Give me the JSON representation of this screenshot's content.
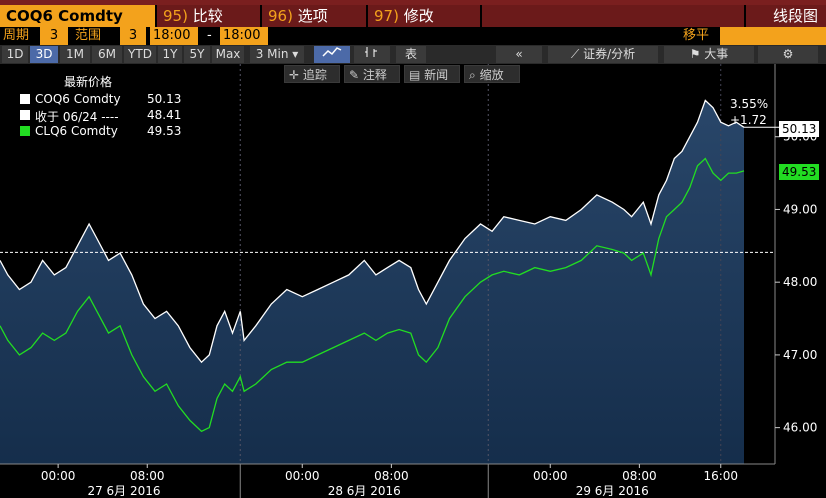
{
  "topbar": {
    "ticker": "COQ6 Comdty",
    "menu": [
      {
        "num": "95)",
        "label": "比较"
      },
      {
        "num": "96)",
        "label": "选项"
      },
      {
        "num": "97)",
        "label": "修改"
      }
    ],
    "view_label": "线段图"
  },
  "settings": {
    "period_label": "周期",
    "period_value": "3",
    "range_label": "范围",
    "range_value": "3",
    "time_from": "18:00",
    "time_sep": "-",
    "time_to": "18:00",
    "ma_label": "移平"
  },
  "range_buttons": [
    "1D",
    "3D",
    "1M",
    "6M",
    "YTD",
    "1Y",
    "5Y",
    "Max"
  ],
  "selected_range": "3D",
  "interval": "3 Min",
  "toolbar_right": {
    "table_label": "表",
    "collapse": "«",
    "securities_label": "证券/分析",
    "events_label": "大事",
    "settings_icon": "gear"
  },
  "chart_tools": [
    "追踪",
    "注释",
    "新闻",
    "缩放"
  ],
  "legend": {
    "title": "最新价格",
    "rows": [
      {
        "name": "COQ6 Comdty",
        "value": "50.13",
        "color": "#ffffff"
      },
      {
        "name": "收于 06/24 ----",
        "value": "48.41",
        "color": "#ffffff"
      },
      {
        "name": "CLQ6 Comdty",
        "value": "49.53",
        "color": "#22dd22"
      }
    ]
  },
  "annotations": {
    "pct_change": "3.55%",
    "abs_change": "+1.72",
    "last_white_tag": "50.13",
    "last_green_tag": "49.53"
  },
  "chart_data": {
    "type": "line",
    "title": "",
    "ylim": [
      45.5,
      51.0
    ],
    "yticks": [
      46.0,
      47.0,
      48.0,
      49.0,
      50.0
    ],
    "prev_close": 48.41,
    "x_labels": [
      {
        "t": 0.075,
        "label": "00:00"
      },
      {
        "t": 0.19,
        "label": "08:00"
      },
      {
        "t": 0.39,
        "label": "00:00"
      },
      {
        "t": 0.505,
        "label": "08:00"
      },
      {
        "t": 0.71,
        "label": "00:00"
      },
      {
        "t": 0.825,
        "label": "08:00"
      },
      {
        "t": 0.93,
        "label": "16:00"
      }
    ],
    "day_labels": [
      {
        "t": 0.16,
        "label": "27 6月 2016"
      },
      {
        "t": 0.47,
        "label": "28 6月 2016"
      },
      {
        "t": 0.79,
        "label": "29 6月 2016"
      }
    ],
    "day_dividers": [
      0.31,
      0.63
    ],
    "series": [
      {
        "name": "COQ6 Comdty",
        "color": "#ffffff",
        "points": [
          [
            0.0,
            48.3
          ],
          [
            0.01,
            48.1
          ],
          [
            0.025,
            47.9
          ],
          [
            0.04,
            48.0
          ],
          [
            0.055,
            48.3
          ],
          [
            0.07,
            48.1
          ],
          [
            0.085,
            48.2
          ],
          [
            0.1,
            48.5
          ],
          [
            0.115,
            48.8
          ],
          [
            0.125,
            48.6
          ],
          [
            0.14,
            48.3
          ],
          [
            0.155,
            48.4
          ],
          [
            0.17,
            48.1
          ],
          [
            0.185,
            47.7
          ],
          [
            0.2,
            47.5
          ],
          [
            0.215,
            47.6
          ],
          [
            0.23,
            47.4
          ],
          [
            0.245,
            47.1
          ],
          [
            0.26,
            46.9
          ],
          [
            0.27,
            47.0
          ],
          [
            0.28,
            47.4
          ],
          [
            0.29,
            47.6
          ],
          [
            0.3,
            47.3
          ],
          [
            0.31,
            47.6
          ],
          [
            0.315,
            47.2
          ],
          [
            0.33,
            47.4
          ],
          [
            0.35,
            47.7
          ],
          [
            0.37,
            47.9
          ],
          [
            0.39,
            47.8
          ],
          [
            0.41,
            47.9
          ],
          [
            0.43,
            48.0
          ],
          [
            0.45,
            48.1
          ],
          [
            0.47,
            48.3
          ],
          [
            0.485,
            48.1
          ],
          [
            0.5,
            48.2
          ],
          [
            0.515,
            48.3
          ],
          [
            0.53,
            48.2
          ],
          [
            0.54,
            47.9
          ],
          [
            0.55,
            47.7
          ],
          [
            0.565,
            48.0
          ],
          [
            0.58,
            48.3
          ],
          [
            0.6,
            48.6
          ],
          [
            0.62,
            48.8
          ],
          [
            0.635,
            48.7
          ],
          [
            0.65,
            48.9
          ],
          [
            0.67,
            48.85
          ],
          [
            0.69,
            48.8
          ],
          [
            0.71,
            48.9
          ],
          [
            0.73,
            48.85
          ],
          [
            0.75,
            49.0
          ],
          [
            0.77,
            49.2
          ],
          [
            0.79,
            49.1
          ],
          [
            0.805,
            49.0
          ],
          [
            0.815,
            48.9
          ],
          [
            0.83,
            49.1
          ],
          [
            0.84,
            48.8
          ],
          [
            0.85,
            49.2
          ],
          [
            0.86,
            49.4
          ],
          [
            0.87,
            49.7
          ],
          [
            0.88,
            49.8
          ],
          [
            0.89,
            50.0
          ],
          [
            0.9,
            50.2
          ],
          [
            0.91,
            50.5
          ],
          [
            0.92,
            50.4
          ],
          [
            0.93,
            50.2
          ],
          [
            0.94,
            50.15
          ],
          [
            0.95,
            50.2
          ],
          [
            0.96,
            50.13
          ]
        ]
      },
      {
        "name": "CLQ6 Comdty",
        "color": "#22dd22",
        "points": [
          [
            0.0,
            47.4
          ],
          [
            0.01,
            47.2
          ],
          [
            0.025,
            47.0
          ],
          [
            0.04,
            47.1
          ],
          [
            0.055,
            47.3
          ],
          [
            0.07,
            47.2
          ],
          [
            0.085,
            47.3
          ],
          [
            0.1,
            47.6
          ],
          [
            0.115,
            47.8
          ],
          [
            0.125,
            47.6
          ],
          [
            0.14,
            47.3
          ],
          [
            0.155,
            47.4
          ],
          [
            0.17,
            47.0
          ],
          [
            0.185,
            46.7
          ],
          [
            0.2,
            46.5
          ],
          [
            0.215,
            46.6
          ],
          [
            0.23,
            46.3
          ],
          [
            0.245,
            46.1
          ],
          [
            0.26,
            45.95
          ],
          [
            0.27,
            46.0
          ],
          [
            0.28,
            46.4
          ],
          [
            0.29,
            46.6
          ],
          [
            0.3,
            46.5
          ],
          [
            0.31,
            46.7
          ],
          [
            0.315,
            46.5
          ],
          [
            0.33,
            46.6
          ],
          [
            0.35,
            46.8
          ],
          [
            0.37,
            46.9
          ],
          [
            0.39,
            46.9
          ],
          [
            0.41,
            47.0
          ],
          [
            0.43,
            47.1
          ],
          [
            0.45,
            47.2
          ],
          [
            0.47,
            47.3
          ],
          [
            0.485,
            47.2
          ],
          [
            0.5,
            47.3
          ],
          [
            0.515,
            47.35
          ],
          [
            0.53,
            47.3
          ],
          [
            0.54,
            47.0
          ],
          [
            0.55,
            46.9
          ],
          [
            0.565,
            47.1
          ],
          [
            0.58,
            47.5
          ],
          [
            0.6,
            47.8
          ],
          [
            0.62,
            48.0
          ],
          [
            0.635,
            48.1
          ],
          [
            0.65,
            48.15
          ],
          [
            0.67,
            48.1
          ],
          [
            0.69,
            48.2
          ],
          [
            0.71,
            48.15
          ],
          [
            0.73,
            48.2
          ],
          [
            0.75,
            48.3
          ],
          [
            0.77,
            48.5
          ],
          [
            0.79,
            48.45
          ],
          [
            0.805,
            48.4
          ],
          [
            0.815,
            48.3
          ],
          [
            0.83,
            48.4
          ],
          [
            0.84,
            48.1
          ],
          [
            0.85,
            48.6
          ],
          [
            0.86,
            48.9
          ],
          [
            0.87,
            49.0
          ],
          [
            0.88,
            49.1
          ],
          [
            0.89,
            49.3
          ],
          [
            0.9,
            49.6
          ],
          [
            0.91,
            49.7
          ],
          [
            0.92,
            49.5
          ],
          [
            0.93,
            49.4
          ],
          [
            0.94,
            49.5
          ],
          [
            0.95,
            49.5
          ],
          [
            0.96,
            49.53
          ]
        ]
      }
    ]
  }
}
